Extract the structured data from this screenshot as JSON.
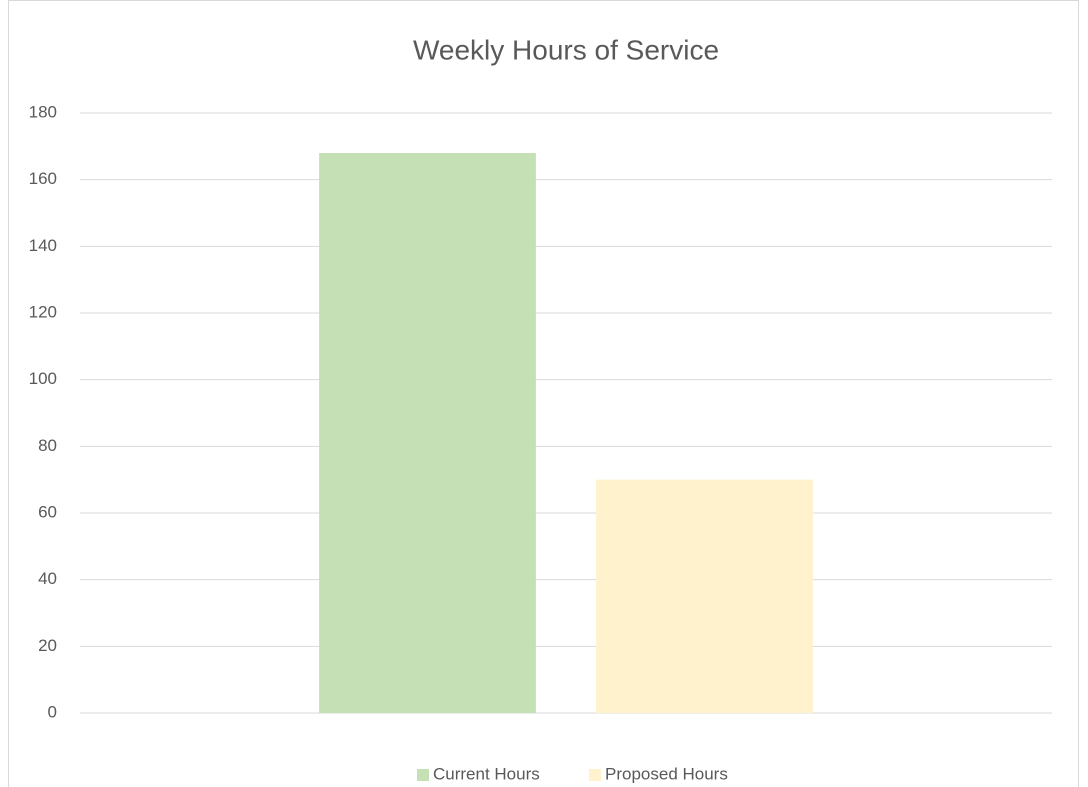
{
  "chart_data": {
    "type": "bar",
    "title": "Weekly Hours of Service",
    "categories": [
      null
    ],
    "series": [
      {
        "name": "Current Hours",
        "color": "#c5e0b4",
        "values": [
          168
        ]
      },
      {
        "name": "Proposed Hours",
        "color": "#fff2cc",
        "values": [
          70
        ]
      }
    ],
    "ylim": [
      0,
      180
    ],
    "yticks": [
      0,
      20,
      40,
      60,
      80,
      100,
      120,
      140,
      160,
      180
    ],
    "grid": true,
    "legend": "bottom"
  }
}
